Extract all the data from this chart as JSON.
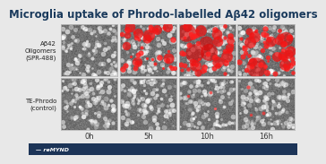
{
  "title": "Microglia uptake of Phrodo-labelled Aβ42 oligomers",
  "title_color": "#1a3a5c",
  "title_fontsize": 8.5,
  "slide_bg": "#e8e8e8",
  "bottom_bar_color": "#1c3457",
  "row_labels": [
    "Aβ42\nOligomers\n(SPR-488)",
    "TE-Phrodo\n(control)"
  ],
  "col_labels": [
    "0h",
    "5h",
    "10h",
    "16h"
  ],
  "col_label_color": "#333333",
  "row_label_fontsize": 5.0,
  "col_label_fontsize": 6.0,
  "red_row0": [
    false,
    true,
    true,
    true
  ],
  "red_row1": [
    false,
    false,
    true,
    true
  ],
  "logo_text": "reMYND",
  "logo_color": "#ffffff",
  "cell_border_color": "#bbbbbb"
}
